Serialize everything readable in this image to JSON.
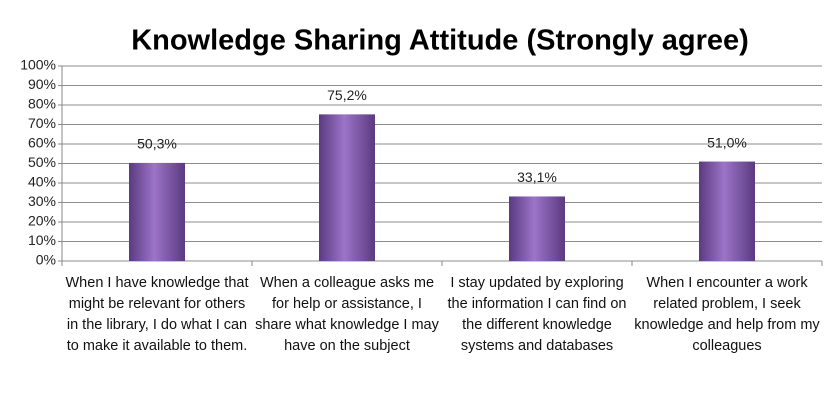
{
  "chart_data": {
    "type": "bar",
    "title": "Knowledge Sharing Attitude (Strongly agree)",
    "categories": [
      "When I have knowledge that might be relevant for others in the library, I do what I can to make it available to them.",
      "When a colleague asks me for help or assistance, I share what knowledge I may have on the subject",
      "I stay updated by exploring the information I can find on the different knowledge systems and databases",
      "When I encounter a work related problem, I seek knowledge and help from my colleagues"
    ],
    "values": [
      50.3,
      75.2,
      33.1,
      51.0
    ],
    "value_labels": [
      "50,3%",
      "75,2%",
      "33,1%",
      "51,0%"
    ],
    "color": "#7d55a8",
    "ylim": [
      0,
      100
    ],
    "yticks": [
      {
        "value": 0,
        "label": "0%"
      },
      {
        "value": 10,
        "label": "10%"
      },
      {
        "value": 20,
        "label": "20%"
      },
      {
        "value": 30,
        "label": "30%"
      },
      {
        "value": 40,
        "label": "40%"
      },
      {
        "value": 50,
        "label": "50%"
      },
      {
        "value": 60,
        "label": "60%"
      },
      {
        "value": 70,
        "label": "70%"
      },
      {
        "value": 80,
        "label": "80%"
      },
      {
        "value": 90,
        "label": "90%"
      },
      {
        "value": 100,
        "label": "100%"
      }
    ],
    "grid": true
  }
}
